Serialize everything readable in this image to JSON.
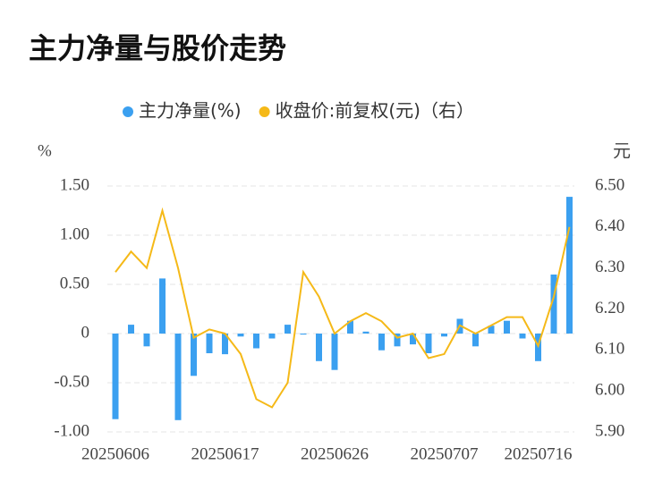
{
  "chart_data": {
    "type": "bar_line",
    "title": "主力净量与股价走势",
    "y_label": "%",
    "y2_label": "元",
    "categories": [
      "20250606",
      null,
      null,
      null,
      null,
      null,
      null,
      "20250617",
      null,
      null,
      null,
      null,
      null,
      null,
      "20250626",
      null,
      null,
      null,
      null,
      null,
      null,
      "20250707",
      null,
      null,
      null,
      null,
      null,
      "20250716",
      null,
      null
    ],
    "series": [
      {
        "name": "主力净量(%)",
        "color": "#3ba0f0",
        "kind": "bar",
        "axis": "y",
        "values": [
          -0.87,
          0.09,
          -0.13,
          0.56,
          -0.88,
          -0.43,
          -0.2,
          -0.21,
          -0.03,
          -0.15,
          -0.05,
          0.09,
          -0.01,
          -0.28,
          -0.37,
          0.13,
          0.02,
          -0.17,
          -0.13,
          -0.11,
          -0.2,
          -0.03,
          0.15,
          -0.13,
          0.08,
          0.13,
          -0.05,
          -0.28,
          0.6,
          1.39
        ]
      },
      {
        "name": "收盘价:前复权(元)（右）",
        "color": "#f5b918",
        "kind": "line",
        "axis": "y2",
        "values": [
          6.29,
          6.34,
          6.3,
          6.44,
          6.3,
          6.13,
          6.15,
          6.14,
          6.09,
          5.98,
          5.96,
          6.02,
          6.29,
          6.23,
          6.14,
          6.17,
          6.19,
          6.17,
          6.13,
          6.14,
          6.08,
          6.09,
          6.16,
          6.14,
          6.16,
          6.18,
          6.18,
          6.11,
          6.23,
          6.4
        ]
      }
    ],
    "ylim": [
      -1.0,
      1.5
    ],
    "yticks": [
      {
        "value": -1.0,
        "label": "-1.00"
      },
      {
        "value": -0.5,
        "label": "-0.50"
      },
      0,
      {
        "value": 0.5,
        "label": "0.50"
      },
      {
        "value": 1.0,
        "label": "1.00"
      },
      {
        "value": 1.5,
        "label": "1.50"
      }
    ],
    "y2lim": [
      5.9,
      6.5
    ],
    "y2ticks": [
      {
        "value": 5.9,
        "label": "5.90"
      },
      {
        "value": 6.0,
        "label": "6.00"
      },
      {
        "value": 6.1,
        "label": "6.10"
      },
      {
        "value": 6.2,
        "label": "6.20"
      },
      {
        "value": 6.3,
        "label": "6.30"
      },
      {
        "value": 6.4,
        "label": "6.40"
      },
      {
        "value": 6.5,
        "label": "6.50"
      }
    ],
    "grid": true
  }
}
